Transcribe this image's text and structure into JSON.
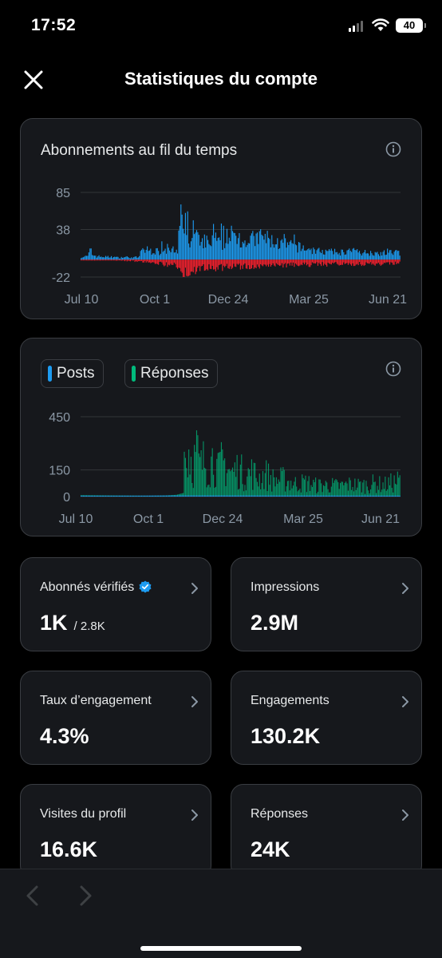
{
  "status_bar": {
    "time": "17:52",
    "battery": "40"
  },
  "header": {
    "title": "Statistiques du compte",
    "close_icon": "close-icon"
  },
  "followers_chart": {
    "title": "Abonnements au fil du temps",
    "colors": {
      "gain": "#1d9bf0",
      "loss": "#f4212e"
    }
  },
  "activity_chart": {
    "posts_label": "Posts",
    "replies_label": "Réponses",
    "colors": {
      "posts": "#1d9bf0",
      "replies": "#00ba7c"
    }
  },
  "chart_data": [
    {
      "type": "bar",
      "title": "Abonnements au fil du temps",
      "x_tick_labels": [
        "Jul 10",
        "Oct 1",
        "Dec 24",
        "Mar 25",
        "Jun 21"
      ],
      "y_ticks": [
        85,
        38,
        -22
      ],
      "ylim": [
        -22,
        85
      ],
      "grid": true,
      "series": [
        {
          "name": "gain",
          "profile": [
            [
              0,
              4
            ],
            [
              6,
              5
            ],
            [
              9,
              16
            ],
            [
              10,
              8
            ],
            [
              14,
              5
            ],
            [
              25,
              4
            ],
            [
              30,
              4
            ],
            [
              33,
              3
            ],
            [
              40,
              4
            ],
            [
              45,
              3
            ],
            [
              52,
              4
            ],
            [
              53,
              12
            ],
            [
              58,
              15
            ],
            [
              60,
              14
            ],
            [
              70,
              12
            ],
            [
              73,
              18
            ],
            [
              75,
              18
            ],
            [
              76,
              10
            ],
            [
              77,
              32
            ],
            [
              80,
              16
            ],
            [
              86,
              10
            ],
            [
              89,
              85
            ],
            [
              91,
              35
            ],
            [
              93,
              50
            ],
            [
              95,
              38
            ],
            [
              98,
              25
            ],
            [
              100,
              45
            ],
            [
              103,
              35
            ],
            [
              107,
              20
            ],
            [
              110,
              30
            ],
            [
              115,
              20
            ],
            [
              118,
              40
            ],
            [
              122,
              25
            ],
            [
              129,
              24
            ],
            [
              130,
              48
            ],
            [
              133,
              28
            ],
            [
              140,
              38
            ],
            [
              146,
              26
            ],
            [
              150,
              32
            ],
            [
              155,
              30
            ],
            [
              161,
              36
            ],
            [
              170,
              28
            ],
            [
              177,
              24
            ],
            [
              184,
              22
            ],
            [
              191,
              20
            ],
            [
              199,
              17
            ],
            [
              210,
              13
            ],
            [
              230,
              11
            ],
            [
              240,
              13
            ],
            [
              250,
              11
            ],
            [
              265,
              10
            ],
            [
              284,
              11
            ]
          ]
        },
        {
          "name": "loss",
          "profile": [
            [
              0,
              -1
            ],
            [
              30,
              -1
            ],
            [
              55,
              -3
            ],
            [
              60,
              -4
            ],
            [
              70,
              -6
            ],
            [
              86,
              -10
            ],
            [
              93,
              -22
            ],
            [
              100,
              -17
            ],
            [
              110,
              -14
            ],
            [
              130,
              -12
            ],
            [
              150,
              -11
            ],
            [
              180,
              -9
            ],
            [
              200,
              -8
            ],
            [
              230,
              -7
            ],
            [
              260,
              -7
            ],
            [
              284,
              -6
            ]
          ]
        }
      ]
    },
    {
      "type": "bar",
      "x_tick_labels": [
        "Jul 10",
        "Oct 1",
        "Dec 24",
        "Mar 25",
        "Jun 21"
      ],
      "y_ticks": [
        450,
        150,
        0
      ],
      "ylim": [
        0,
        450
      ],
      "grid": true,
      "series": [
        {
          "name": "Posts",
          "profile": [
            [
              0,
              5
            ],
            [
              50,
              5
            ],
            [
              90,
              6
            ],
            [
              285,
              5
            ]
          ]
        },
        {
          "name": "Réponses",
          "profile": [
            [
              0,
              8
            ],
            [
              30,
              6
            ],
            [
              60,
              5
            ],
            [
              75,
              6
            ],
            [
              85,
              10
            ],
            [
              91,
              20
            ],
            [
              92,
              380
            ],
            [
              94,
              300
            ],
            [
              96,
              410
            ],
            [
              98,
              330
            ],
            [
              100,
              280
            ],
            [
              103,
              390
            ],
            [
              106,
              250
            ],
            [
              110,
              310
            ],
            [
              114,
              270
            ],
            [
              118,
              350
            ],
            [
              122,
              220
            ],
            [
              126,
              300
            ],
            [
              130,
              260
            ],
            [
              134,
              200
            ],
            [
              140,
              240
            ],
            [
              146,
              180
            ],
            [
              152,
              210
            ],
            [
              158,
              160
            ],
            [
              165,
              190
            ],
            [
              172,
              140
            ],
            [
              180,
              150
            ],
            [
              190,
              110
            ],
            [
              200,
              120
            ],
            [
              210,
              95
            ],
            [
              220,
              100
            ],
            [
              230,
              90
            ],
            [
              240,
              105
            ],
            [
              250,
              95
            ],
            [
              260,
              110
            ],
            [
              270,
              100
            ],
            [
              278,
              120
            ],
            [
              284,
              140
            ]
          ]
        }
      ]
    }
  ],
  "stats": [
    {
      "label": "Abonnés vérifiés",
      "value": "1K",
      "sub": "/ 2.8K",
      "icon": "verified-badge-icon"
    },
    {
      "label": "Impressions",
      "value": "2.9M"
    },
    {
      "label": "Taux d’engagement",
      "value": "4.3%"
    },
    {
      "label": "Engagements",
      "value": "130.2K"
    },
    {
      "label": "Visites du profil",
      "value": "16.6K"
    },
    {
      "label": "Réponses",
      "value": "24K"
    }
  ],
  "colors": {
    "accent": "#1d9bf0",
    "card_bg": "#16181c",
    "border": "#3a3d42",
    "grid": "#333639",
    "muted": "#8b98a5"
  }
}
